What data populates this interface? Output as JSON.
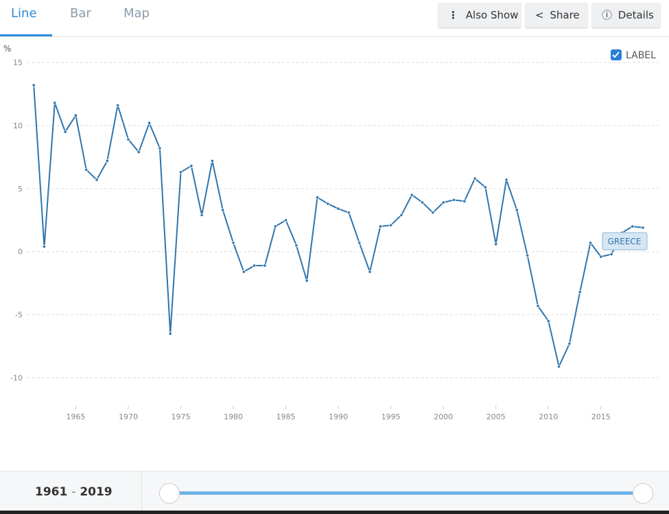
{
  "tabs": [
    "Line",
    "Bar",
    "Map"
  ],
  "buttons": [
    "Also Show",
    "Share",
    "Details"
  ],
  "range": {
    "start": "1961",
    "separator": "-",
    "end": "2019"
  },
  "chart_data": {
    "type": "line",
    "y_unit": "%",
    "label_toggle": "LABEL",
    "x": [
      1961,
      1962,
      1963,
      1964,
      1965,
      1966,
      1967,
      1968,
      1969,
      1970,
      1971,
      1972,
      1973,
      1974,
      1975,
      1976,
      1977,
      1978,
      1979,
      1980,
      1981,
      1982,
      1983,
      1984,
      1985,
      1986,
      1987,
      1988,
      1989,
      1990,
      1991,
      1992,
      1993,
      1994,
      1995,
      1996,
      1997,
      1998,
      1999,
      2000,
      2001,
      2002,
      2003,
      2004,
      2005,
      2006,
      2007,
      2008,
      2009,
      2010,
      2011,
      2012,
      2013,
      2014,
      2015,
      2016,
      2017,
      2018,
      2019
    ],
    "series": [
      {
        "name": "GREECE",
        "color": "#2e75ad",
        "values": [
          13.2,
          0.4,
          11.8,
          9.5,
          10.8,
          6.5,
          5.7,
          7.2,
          11.6,
          8.9,
          7.9,
          10.2,
          8.2,
          -6.5,
          6.3,
          6.8,
          2.9,
          7.2,
          3.3,
          0.7,
          -1.6,
          -1.1,
          -1.1,
          2.0,
          2.5,
          0.5,
          -2.3,
          4.3,
          3.8,
          3.4,
          3.1,
          0.7,
          -1.6,
          2.0,
          2.1,
          2.9,
          4.5,
          3.9,
          3.1,
          3.9,
          4.1,
          4.0,
          5.8,
          5.1,
          0.6,
          5.7,
          3.3,
          -0.3,
          -4.3,
          -5.5,
          -9.1,
          -7.3,
          -3.2,
          0.7,
          -0.4,
          -0.2,
          1.5,
          2.0,
          1.9
        ]
      }
    ],
    "xlim": [
      1960.4,
      2020.5
    ],
    "xticks": [
      1965,
      1970,
      1975,
      1980,
      1985,
      1990,
      1995,
      2000,
      2005,
      2010,
      2015
    ],
    "ylim": [
      -12.2,
      15
    ],
    "yticks": [
      15,
      10,
      5,
      0,
      -5,
      -10
    ],
    "grid": true
  }
}
